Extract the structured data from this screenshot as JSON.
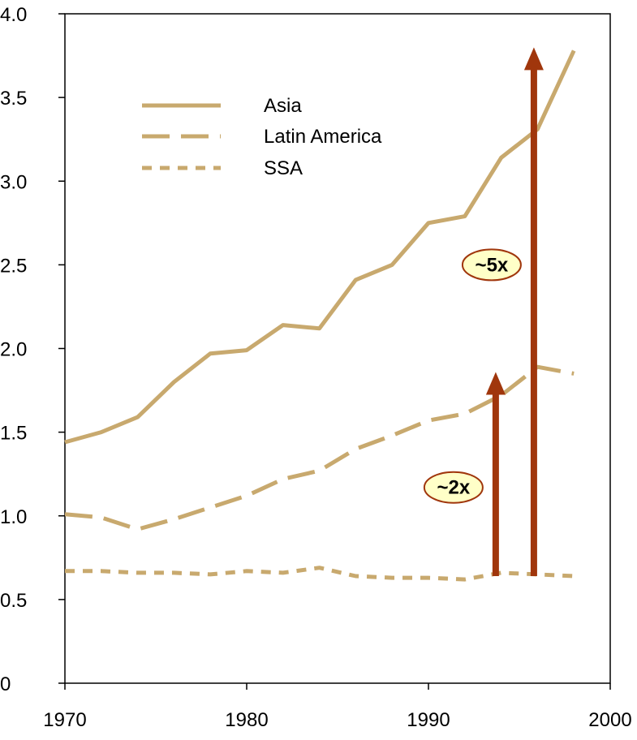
{
  "chart_data": {
    "type": "line",
    "title": "",
    "xlabel": "",
    "ylabel": "",
    "xlim": [
      1970,
      2000
    ],
    "ylim": [
      0,
      4.0
    ],
    "x_ticks": [
      1970,
      1980,
      1990,
      2000
    ],
    "y_ticks": [
      {
        "value": 0,
        "label": "0"
      },
      {
        "value": 0.5,
        "label": "0.5"
      },
      {
        "value": 1.0,
        "label": "1.0"
      },
      {
        "value": 1.5,
        "label": "1.5"
      },
      {
        "value": 2.0,
        "label": "2.0"
      },
      {
        "value": 2.5,
        "label": "2.5"
      },
      {
        "value": 3.0,
        "label": "3.0"
      },
      {
        "value": 3.5,
        "label": "3.5"
      },
      {
        "value": 4.0,
        "label": "4.0"
      }
    ],
    "grid": false,
    "legend_position": "top-left",
    "series": [
      {
        "name": "Asia",
        "style": "solid",
        "color": "#c8a96e",
        "points": [
          [
            1970,
            1.44
          ],
          [
            1972,
            1.5
          ],
          [
            1974,
            1.59
          ],
          [
            1976,
            1.8
          ],
          [
            1978,
            1.97
          ],
          [
            1980,
            1.99
          ],
          [
            1982,
            2.14
          ],
          [
            1984,
            2.12
          ],
          [
            1986,
            2.41
          ],
          [
            1988,
            2.5
          ],
          [
            1990,
            2.75
          ],
          [
            1992,
            2.79
          ],
          [
            1994,
            3.14
          ],
          [
            1996,
            3.31
          ],
          [
            1998,
            3.78
          ]
        ]
      },
      {
        "name": "Latin America",
        "style": "long-dash",
        "color": "#c8a96e",
        "points": [
          [
            1970,
            1.01
          ],
          [
            1972,
            0.99
          ],
          [
            1974,
            0.92
          ],
          [
            1976,
            0.98
          ],
          [
            1978,
            1.05
          ],
          [
            1980,
            1.12
          ],
          [
            1982,
            1.22
          ],
          [
            1984,
            1.27
          ],
          [
            1986,
            1.4
          ],
          [
            1988,
            1.48
          ],
          [
            1990,
            1.57
          ],
          [
            1992,
            1.61
          ],
          [
            1994,
            1.72
          ],
          [
            1996,
            1.89
          ],
          [
            1998,
            1.85
          ]
        ]
      },
      {
        "name": "SSA",
        "style": "short-dash",
        "color": "#c8a96e",
        "points": [
          [
            1970,
            0.67
          ],
          [
            1972,
            0.67
          ],
          [
            1974,
            0.66
          ],
          [
            1976,
            0.66
          ],
          [
            1978,
            0.65
          ],
          [
            1980,
            0.67
          ],
          [
            1982,
            0.66
          ],
          [
            1984,
            0.69
          ],
          [
            1986,
            0.64
          ],
          [
            1988,
            0.63
          ],
          [
            1990,
            0.63
          ],
          [
            1992,
            0.62
          ],
          [
            1994,
            0.66
          ],
          [
            1996,
            0.65
          ],
          [
            1998,
            0.64
          ]
        ]
      }
    ],
    "annotations": [
      {
        "label": "~5x",
        "arrow_x": 1995.8,
        "arrow_from": 0.64,
        "arrow_to": 3.78,
        "badge_y": 2.5
      },
      {
        "label": "~2x",
        "arrow_x": 1993.7,
        "arrow_from": 0.64,
        "arrow_to": 1.84,
        "badge_y": 1.17
      }
    ],
    "colors": {
      "series": "#c8a96e",
      "arrow": "#a0360c",
      "badge_fill": "#ffffc8",
      "badge_stroke": "#a0360c"
    }
  }
}
